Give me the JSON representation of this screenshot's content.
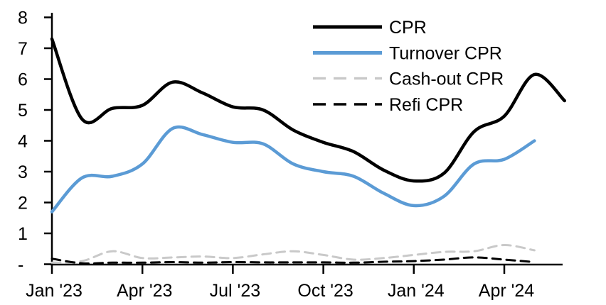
{
  "chart_data": {
    "type": "line",
    "title": "",
    "x_axis": {
      "tick_labels": [
        "Jan '23",
        "Apr '23",
        "Jul '23",
        "Oct '23",
        "Jan '24",
        "Apr '24"
      ],
      "tick_month_indices": [
        0,
        3,
        6,
        9,
        12,
        15
      ],
      "months": [
        "Jan '23",
        "Feb '23",
        "Mar '23",
        "Apr '23",
        "May '23",
        "Jun '23",
        "Jul '23",
        "Aug '23",
        "Sep '23",
        "Oct '23",
        "Nov '23",
        "Dec '23",
        "Jan '24",
        "Feb '24",
        "Mar '24",
        "Apr '24",
        "May '24",
        "Jun '24"
      ]
    },
    "y_axis": {
      "tick_labels": [
        "8",
        "7",
        "6",
        "5",
        "4",
        "3",
        "2",
        "1",
        "-"
      ],
      "tick_values": [
        8,
        7,
        6,
        5,
        4,
        3,
        2,
        1,
        0
      ],
      "range": [
        0,
        8
      ]
    },
    "grid": false,
    "legend_position": "top-right",
    "axis_color": "#000000",
    "series": [
      {
        "name": "CPR",
        "color": "#000000",
        "dash": "solid",
        "width": 4.5,
        "values": [
          7.3,
          4.7,
          5.05,
          5.15,
          5.9,
          5.55,
          5.1,
          5.0,
          4.35,
          3.95,
          3.65,
          3.05,
          2.7,
          2.95,
          4.3,
          4.8,
          6.15,
          5.3
        ]
      },
      {
        "name": "Turnover CPR",
        "color": "#5B9BD5",
        "dash": "solid",
        "width": 4.5,
        "values": [
          1.7,
          2.8,
          2.85,
          3.25,
          4.4,
          4.2,
          3.95,
          3.9,
          3.25,
          3.0,
          2.85,
          2.3,
          1.9,
          2.2,
          3.25,
          3.4,
          4.0
        ]
      },
      {
        "name": "Cash-out CPR",
        "color": "#C9C9C9",
        "dash": "dashed",
        "width": 3,
        "values": [
          0.05,
          0.1,
          0.42,
          0.2,
          0.22,
          0.25,
          0.2,
          0.32,
          0.42,
          0.3,
          0.15,
          0.2,
          0.3,
          0.4,
          0.42,
          0.62,
          0.45
        ]
      },
      {
        "name": "Refi CPR",
        "color": "#000000",
        "dash": "dashed",
        "width": 3,
        "values": [
          0.18,
          0.03,
          0.05,
          0.05,
          0.07,
          0.05,
          0.07,
          0.06,
          0.06,
          0.06,
          0.05,
          0.08,
          0.1,
          0.15,
          0.22,
          0.15,
          0.07
        ]
      }
    ]
  }
}
